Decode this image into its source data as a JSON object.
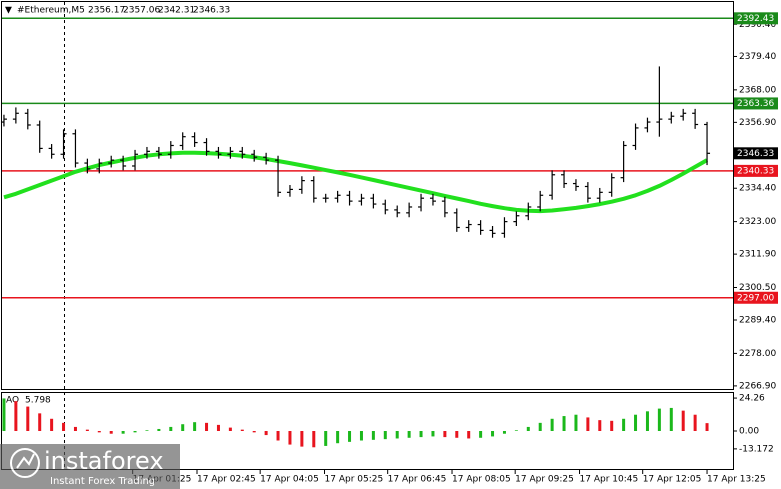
{
  "chart_data": {
    "type": "ohlc",
    "symbol": "#Ethereum,M5",
    "color": "#000000",
    "open": [
      2357,
      2358,
      2360,
      2356,
      2348,
      2346,
      2353,
      2343,
      2341,
      2343,
      2344,
      2342,
      2346,
      2347,
      2346,
      2349,
      2352,
      2350,
      2347,
      2346,
      2347,
      2346,
      2345,
      2344,
      2333,
      2334,
      2337,
      2331,
      2331,
      2332,
      2330,
      2331,
      2329,
      2327,
      2326,
      2328,
      2331,
      2330,
      2326,
      2321,
      2322,
      2320,
      2319,
      2323,
      2325,
      2328,
      2332,
      2339,
      2336,
      2335,
      2331,
      2333,
      2338,
      2349,
      2355,
      2357,
      2358,
      2359,
      2360,
      2356.17
    ],
    "high": [
      2359.5,
      2362,
      2361.5,
      2357.5,
      2349.5,
      2354.5,
      2354.5,
      2344.5,
      2344.5,
      2345.5,
      2345.5,
      2347.5,
      2348.5,
      2348.5,
      2350.5,
      2353.5,
      2353.5,
      2351.5,
      2348.5,
      2348.5,
      2348.5,
      2347.5,
      2346.5,
      2345.5,
      2335.5,
      2338.5,
      2338.5,
      2332.5,
      2333.5,
      2333.5,
      2332.5,
      2332.5,
      2330.5,
      2328.5,
      2329.5,
      2332.5,
      2332.5,
      2331.5,
      2327.5,
      2323.5,
      2323.5,
      2321.5,
      2324.5,
      2326.5,
      2329.5,
      2333.5,
      2340.5,
      2340.5,
      2337.5,
      2336.5,
      2334.5,
      2339.5,
      2350.5,
      2356.5,
      2358.5,
      2376,
      2360.5,
      2361.5,
      2361.5,
      2357.06
    ],
    "low": [
      2355.5,
      2356.5,
      2354.5,
      2346.5,
      2344.5,
      2344.5,
      2341.5,
      2339.5,
      2339.5,
      2341.5,
      2340.5,
      2340.5,
      2344.5,
      2344.5,
      2344.5,
      2347.5,
      2348.5,
      2345.5,
      2344.5,
      2344.5,
      2344.5,
      2343.5,
      2342.5,
      2331.5,
      2331.5,
      2332.5,
      2329.5,
      2329.5,
      2329.5,
      2328.5,
      2328.5,
      2327.5,
      2325.5,
      2324.5,
      2324.5,
      2326.5,
      2328.5,
      2324.5,
      2319.5,
      2319.5,
      2318.5,
      2317.5,
      2317.5,
      2321.5,
      2323.5,
      2326.5,
      2330.5,
      2334.5,
      2333.5,
      2329.5,
      2329.5,
      2331.5,
      2336.5,
      2347.5,
      2353.5,
      2352,
      2356.5,
      2357.5,
      2354.67,
      2342.31
    ],
    "close": [
      2358,
      2360,
      2356,
      2348,
      2346,
      2353,
      2343,
      2341,
      2343,
      2344,
      2342,
      2346,
      2347,
      2346,
      2349,
      2352,
      2350,
      2347,
      2346,
      2347,
      2346,
      2345,
      2344,
      2333,
      2334,
      2337,
      2331,
      2331,
      2332,
      2330,
      2331,
      2329,
      2327,
      2326,
      2328,
      2331,
      2330,
      2326,
      2321,
      2322,
      2320,
      2319,
      2323,
      2325,
      2328,
      2332,
      2339,
      2336,
      2335,
      2331,
      2333,
      2338,
      2349,
      2355,
      2357,
      2358,
      2359,
      2360,
      2356.17,
      2346.33
    ],
    "moving_average": {
      "color": "#22e01e",
      "values": [
        2331.3,
        2332.5,
        2334,
        2335.5,
        2337,
        2338.5,
        2340,
        2341.2,
        2342.3,
        2343.2,
        2344,
        2344.8,
        2345.5,
        2346,
        2346.3,
        2346.5,
        2346.5,
        2346.4,
        2346.2,
        2345.9,
        2345.5,
        2345,
        2344.4,
        2343.7,
        2343,
        2342.2,
        2341.4,
        2340.6,
        2339.8,
        2339,
        2338.1,
        2337.2,
        2336.3,
        2335.4,
        2334.5,
        2333.6,
        2332.7,
        2331.8,
        2330.9,
        2330,
        2329.1,
        2328.3,
        2327.6,
        2327,
        2326.7,
        2326.6,
        2326.8,
        2327.2,
        2327.7,
        2328.3,
        2329,
        2329.8,
        2330.8,
        2332,
        2333.5,
        2335.2,
        2337.2,
        2339.4,
        2341.7,
        2344
      ]
    },
    "ylim": [
      2265.5,
      2398
    ],
    "yticks": [
      {
        "value": 2390.4,
        "label": "2390.40"
      },
      {
        "value": 2379.4,
        "label": "2379.40"
      },
      {
        "value": 2368,
        "label": "2368.00"
      },
      {
        "value": 2356.9,
        "label": "2356.90"
      },
      {
        "value": 2334.4,
        "label": "2334.40"
      },
      {
        "value": 2323,
        "label": "2323.00"
      },
      {
        "value": 2311.9,
        "label": "2311.90"
      },
      {
        "value": 2300.5,
        "label": "2300.50"
      },
      {
        "value": 2289.4,
        "label": "2289.40"
      },
      {
        "value": 2278,
        "label": "2278.00"
      },
      {
        "value": 2266.9,
        "label": "2266.90"
      }
    ],
    "levels": [
      {
        "value": 2392.43,
        "label": "2392.43",
        "color": "#1a8a1a"
      },
      {
        "value": 2363.36,
        "label": "2363.36",
        "color": "#1a8a1a"
      },
      {
        "value": 2340.33,
        "label": "2340.33",
        "color": "#e8141e"
      },
      {
        "value": 2297,
        "label": "2297.00",
        "color": "#e8141e"
      }
    ],
    "xlim": [
      -0.5,
      59.5
    ],
    "xticks": [
      {
        "value": 10.8,
        "label": "17 Apr 01:25"
      },
      {
        "value": 16.2,
        "label": "17 Apr 02:45"
      },
      {
        "value": 21.5,
        "label": "17 Apr 04:05"
      },
      {
        "value": 26.9,
        "label": "17 Apr 05:25"
      },
      {
        "value": 32.2,
        "label": "17 Apr 06:45"
      },
      {
        "value": 37.6,
        "label": "17 Apr 08:05"
      },
      {
        "value": 42.9,
        "label": "17 Apr 09:25"
      },
      {
        "value": 48.3,
        "label": "17 Apr 10:45"
      },
      {
        "value": 53.6,
        "label": "17 Apr 12:05"
      },
      {
        "value": 59.0,
        "label": "17 Apr 13:25"
      }
    ],
    "indicator": {
      "type": "bar",
      "name": "AO",
      "up_color": "#1bb81b",
      "down_color": "#e8141e",
      "values": [
        24,
        22,
        18,
        13,
        9,
        6,
        3,
        1,
        -1,
        -2,
        -2,
        -1,
        0.5,
        1.5,
        3,
        5,
        6.5,
        6,
        4.5,
        2.5,
        1,
        -1,
        -3,
        -7,
        -10,
        -11.5,
        -12,
        -11,
        -9,
        -8,
        -7,
        -6.5,
        -6,
        -5.5,
        -5,
        -4.5,
        -4,
        -4.5,
        -5,
        -5.5,
        -5,
        -4,
        -2,
        0.5,
        3,
        6,
        9,
        11,
        12,
        10,
        8,
        7.5,
        9,
        12,
        14.5,
        16.5,
        17,
        15,
        12,
        5.798
      ],
      "ylim": [
        -28,
        28
      ],
      "yticks": [
        {
          "value": 24.26,
          "label": "24.26"
        },
        {
          "value": 0,
          "label": "0.00"
        },
        {
          "value": -13.172,
          "label": "-13.172"
        }
      ]
    }
  },
  "watermark": {
    "name": "instaforex",
    "tagline": "Instant Forex Trading"
  }
}
